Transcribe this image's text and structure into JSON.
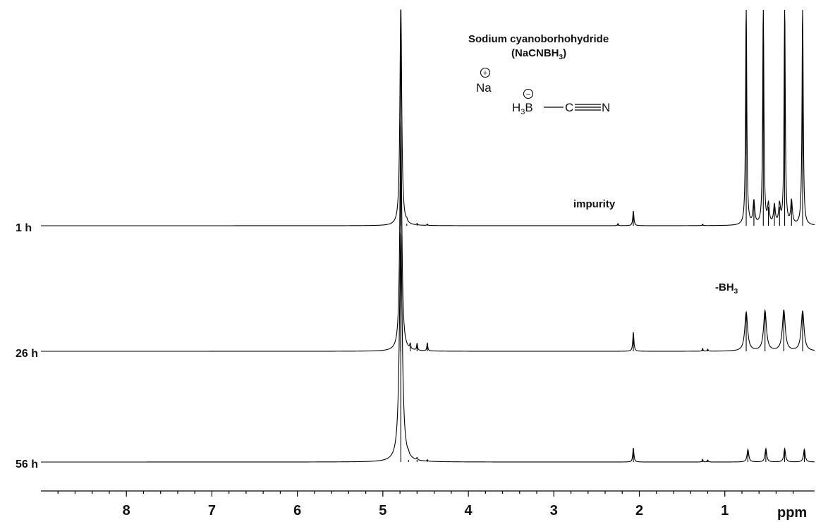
{
  "chart_data": {
    "type": "line",
    "xlabel": "ppm",
    "x_reversed": true,
    "xlim": [
      9.0,
      -0.05
    ],
    "ticks": [
      {
        "v": 8,
        "label": "8"
      },
      {
        "v": 7,
        "label": "7"
      },
      {
        "v": 6,
        "label": "6"
      },
      {
        "v": 5,
        "label": "5"
      },
      {
        "v": 4,
        "label": "4"
      },
      {
        "v": 3,
        "label": "3"
      },
      {
        "v": 2,
        "label": "2"
      },
      {
        "v": 1,
        "label": "1"
      }
    ],
    "series": [
      {
        "name": "1 h",
        "peaks": [
          {
            "ppm": 4.79,
            "height": 3.25,
            "width": 0.012
          },
          {
            "ppm": 4.72,
            "height": 0.03,
            "width": 0.006
          },
          {
            "ppm": 4.6,
            "height": 0.02,
            "width": 0.006
          },
          {
            "ppm": 4.48,
            "height": 0.02,
            "width": 0.006
          },
          {
            "ppm": 2.07,
            "height": 0.21,
            "width": 0.008
          },
          {
            "ppm": 2.25,
            "height": 0.03,
            "width": 0.006
          },
          {
            "ppm": 1.26,
            "height": 0.02,
            "width": 0.006
          },
          {
            "ppm": 0.75,
            "height": 3.25,
            "width": 0.008
          },
          {
            "ppm": 0.66,
            "height": 0.33,
            "width": 0.012
          },
          {
            "ppm": 0.55,
            "height": 3.25,
            "width": 0.008
          },
          {
            "ppm": 0.49,
            "height": 0.27,
            "width": 0.012
          },
          {
            "ppm": 0.42,
            "height": 0.27,
            "width": 0.012
          },
          {
            "ppm": 0.36,
            "height": 0.27,
            "width": 0.012
          },
          {
            "ppm": 0.3,
            "height": 3.25,
            "width": 0.008
          },
          {
            "ppm": 0.22,
            "height": 0.33,
            "width": 0.012
          },
          {
            "ppm": 0.09,
            "height": 3.25,
            "width": 0.008
          }
        ]
      },
      {
        "name": "26 h",
        "peaks": [
          {
            "ppm": 4.79,
            "height": 3.25,
            "width": 0.014
          },
          {
            "ppm": 4.68,
            "height": 0.07,
            "width": 0.006
          },
          {
            "ppm": 4.6,
            "height": 0.1,
            "width": 0.006
          },
          {
            "ppm": 4.48,
            "height": 0.12,
            "width": 0.006
          },
          {
            "ppm": 2.07,
            "height": 0.27,
            "width": 0.008
          },
          {
            "ppm": 1.26,
            "height": 0.04,
            "width": 0.006
          },
          {
            "ppm": 1.2,
            "height": 0.03,
            "width": 0.006
          },
          {
            "ppm": 0.75,
            "height": 0.55,
            "width": 0.02
          },
          {
            "ppm": 0.53,
            "height": 0.57,
            "width": 0.02
          },
          {
            "ppm": 0.31,
            "height": 0.58,
            "width": 0.02
          },
          {
            "ppm": 0.09,
            "height": 0.57,
            "width": 0.02
          }
        ]
      },
      {
        "name": "56 h",
        "peaks": [
          {
            "ppm": 4.79,
            "height": 3.25,
            "width": 0.02
          },
          {
            "ppm": 4.7,
            "height": 0.03,
            "width": 0.006
          },
          {
            "ppm": 4.6,
            "height": 0.03,
            "width": 0.006
          },
          {
            "ppm": 4.48,
            "height": 0.02,
            "width": 0.006
          },
          {
            "ppm": 2.07,
            "height": 0.2,
            "width": 0.008
          },
          {
            "ppm": 1.26,
            "height": 0.04,
            "width": 0.006
          },
          {
            "ppm": 1.2,
            "height": 0.03,
            "width": 0.006
          },
          {
            "ppm": 0.73,
            "height": 0.18,
            "width": 0.012
          },
          {
            "ppm": 0.52,
            "height": 0.19,
            "width": 0.012
          },
          {
            "ppm": 0.3,
            "height": 0.19,
            "width": 0.012
          },
          {
            "ppm": 0.07,
            "height": 0.18,
            "width": 0.012
          }
        ]
      }
    ],
    "annotations": [
      {
        "key": "impurity",
        "text": "impurity",
        "ppm": 2.07,
        "series": 0
      },
      {
        "key": "bh3",
        "text": "-BH",
        "sub": "3",
        "ppm": 0.42,
        "series": 1
      }
    ],
    "inset": {
      "title": "Sodium cyanoborhohydride",
      "formula_open": "(NaCNBH",
      "formula_sub": "3",
      "formula_close": ")",
      "na": "Na",
      "plus": "+",
      "minus": "−",
      "h3b_h": "H",
      "h3b_sub": "3",
      "h3b_b": "B",
      "c": "C",
      "n": "N"
    }
  }
}
